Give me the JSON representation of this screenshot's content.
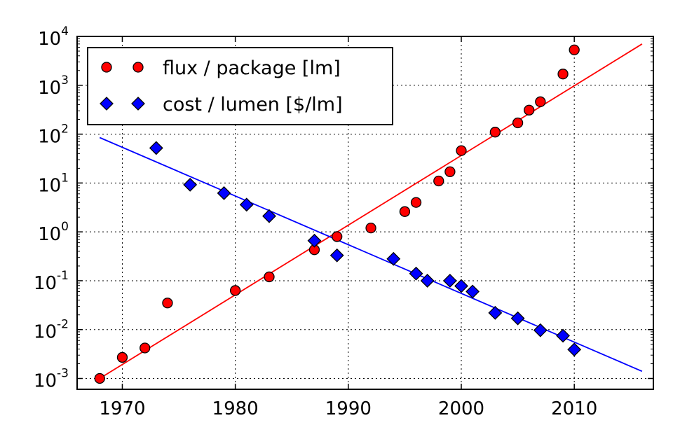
{
  "chart_data": {
    "type": "scatter",
    "x_ticks": [
      1970,
      1980,
      1990,
      2000,
      2010
    ],
    "y_scale": "log",
    "y_ticks": [
      {
        "exp": -3,
        "base": "10",
        "sup": "-3"
      },
      {
        "exp": -2,
        "base": "10",
        "sup": "-2"
      },
      {
        "exp": -1,
        "base": "10",
        "sup": "-1"
      },
      {
        "exp": 0,
        "base": "10",
        "sup": "0"
      },
      {
        "exp": 1,
        "base": "10",
        "sup": "1"
      },
      {
        "exp": 2,
        "base": "10",
        "sup": "2"
      },
      {
        "exp": 3,
        "base": "10",
        "sup": "3"
      },
      {
        "exp": 4,
        "base": "10",
        "sup": "4"
      }
    ],
    "xlim": [
      1966,
      2017
    ],
    "ylim": [
      0.0006,
      10000
    ],
    "grid": true,
    "legend_position": "top-left",
    "series": [
      {
        "name": "flux / package [lm]",
        "marker": "circle",
        "color": "#ff0000",
        "points": [
          [
            1968,
            0.001
          ],
          [
            1970,
            0.0027
          ],
          [
            1972,
            0.0042
          ],
          [
            1974,
            0.035
          ],
          [
            1980,
            0.063
          ],
          [
            1983,
            0.12
          ],
          [
            1987,
            0.43
          ],
          [
            1989,
            0.8
          ],
          [
            1992,
            1.2
          ],
          [
            1995,
            2.6
          ],
          [
            1996,
            4.0
          ],
          [
            1998,
            11
          ],
          [
            1999,
            17
          ],
          [
            2000,
            46
          ],
          [
            2003,
            110
          ],
          [
            2005,
            170
          ],
          [
            2006,
            310
          ],
          [
            2007,
            460
          ],
          [
            2009,
            1700
          ],
          [
            2010,
            5300
          ]
        ],
        "fit": {
          "color": "#ff0000",
          "from": [
            1968,
            0.001
          ],
          "to": [
            2016,
            7000
          ]
        }
      },
      {
        "name": "cost / lumen [$/lm]",
        "marker": "diamond",
        "color": "#0000ff",
        "points": [
          [
            1973,
            52
          ],
          [
            1976,
            9.2
          ],
          [
            1979,
            6.2
          ],
          [
            1981,
            3.6
          ],
          [
            1983,
            2.1
          ],
          [
            1987,
            0.66
          ],
          [
            1989,
            0.33
          ],
          [
            1994,
            0.28
          ],
          [
            1996,
            0.14
          ],
          [
            1997,
            0.1
          ],
          [
            1999,
            0.1
          ],
          [
            2000,
            0.078
          ],
          [
            2001,
            0.06
          ],
          [
            2003,
            0.022
          ],
          [
            2005,
            0.017
          ],
          [
            2007,
            0.0097
          ],
          [
            2009,
            0.0075
          ],
          [
            2010,
            0.0039
          ]
        ],
        "fit": {
          "color": "#0000ff",
          "from": [
            1968,
            85
          ],
          "to": [
            2016,
            0.0014
          ]
        }
      }
    ]
  }
}
